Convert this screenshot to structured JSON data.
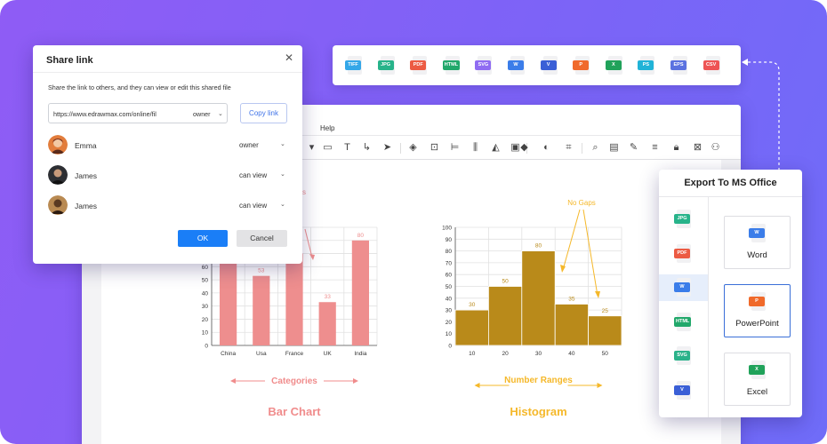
{
  "editor": {
    "menu_help": "Help"
  },
  "share_dialog": {
    "title": "Share link",
    "description": "Share the link to others, and they can view or edit this shared file",
    "link_url": "https://www.edrawmax.com/online/fil",
    "link_role": "owner",
    "copy_label": "Copy link",
    "users": [
      {
        "name": "Emma",
        "role": "owner",
        "avatar_color": "#b4552f"
      },
      {
        "name": "James",
        "role": "can view",
        "avatar_color": "#2f2b2b"
      },
      {
        "name": "James",
        "role": "can view",
        "avatar_color": "#8a5a2c"
      }
    ],
    "ok_label": "OK",
    "cancel_label": "Cancel"
  },
  "format_strip": [
    {
      "label": "TIFF",
      "color": "#34a7e8"
    },
    {
      "label": "JPG",
      "color": "#27b38a"
    },
    {
      "label": "PDF",
      "color": "#ec5b43"
    },
    {
      "label": "HTML",
      "color": "#22a86b"
    },
    {
      "label": "SVG",
      "color": "#8f6cf2"
    },
    {
      "label": "W",
      "color": "#3b7de9"
    },
    {
      "label": "V",
      "color": "#3a5fd6"
    },
    {
      "label": "P",
      "color": "#f06a2b"
    },
    {
      "label": "X",
      "color": "#20a25a"
    },
    {
      "label": "PS",
      "color": "#21b3d7"
    },
    {
      "label": "EPS",
      "color": "#5b72e0"
    },
    {
      "label": "CSV",
      "color": "#ee5454"
    }
  ],
  "export_panel": {
    "title": "Export To MS Office",
    "side_formats": [
      {
        "label": "JPG",
        "color": "#27b38a"
      },
      {
        "label": "PDF",
        "color": "#ec5b43"
      },
      {
        "label": "W",
        "color": "#3b7de9"
      },
      {
        "label": "HTML",
        "color": "#22a86b"
      },
      {
        "label": "SVG",
        "color": "#2ab28a"
      },
      {
        "label": "V",
        "color": "#3a5fd6"
      }
    ],
    "cards": [
      {
        "label": "Word",
        "icon": "W",
        "color": "#3b7de9"
      },
      {
        "label": "PowerPoint",
        "icon": "P",
        "color": "#f06a2b"
      },
      {
        "label": "Excel",
        "icon": "X",
        "color": "#20a25a"
      }
    ]
  },
  "chart_data": [
    {
      "type": "bar",
      "title": "Bar Chart",
      "xlabel": "Categories",
      "categories": [
        "China",
        "Usa",
        "France",
        "UK",
        "India"
      ],
      "values": [
        70,
        53,
        70,
        33,
        80
      ],
      "data_labels": [
        "",
        "53",
        "",
        "33",
        "80"
      ],
      "yticks": [
        0,
        10,
        20,
        30,
        40,
        50,
        60
      ],
      "ylim": [
        0,
        90
      ],
      "annotation": "s",
      "color": "#ee8e8e"
    },
    {
      "type": "bar",
      "title": "Histogram",
      "xlabel": "Number Ranges",
      "annotation": "No Gaps",
      "categories": [
        "10",
        "20",
        "30",
        "40",
        "50"
      ],
      "values": [
        30,
        50,
        80,
        35,
        25
      ],
      "data_labels": [
        "30",
        "50",
        "80",
        "35",
        "25"
      ],
      "yticks": [
        0,
        10,
        20,
        30,
        40,
        50,
        60,
        70,
        80,
        90,
        100
      ],
      "ylim": [
        0,
        100
      ],
      "color": "#b98a1a"
    }
  ]
}
